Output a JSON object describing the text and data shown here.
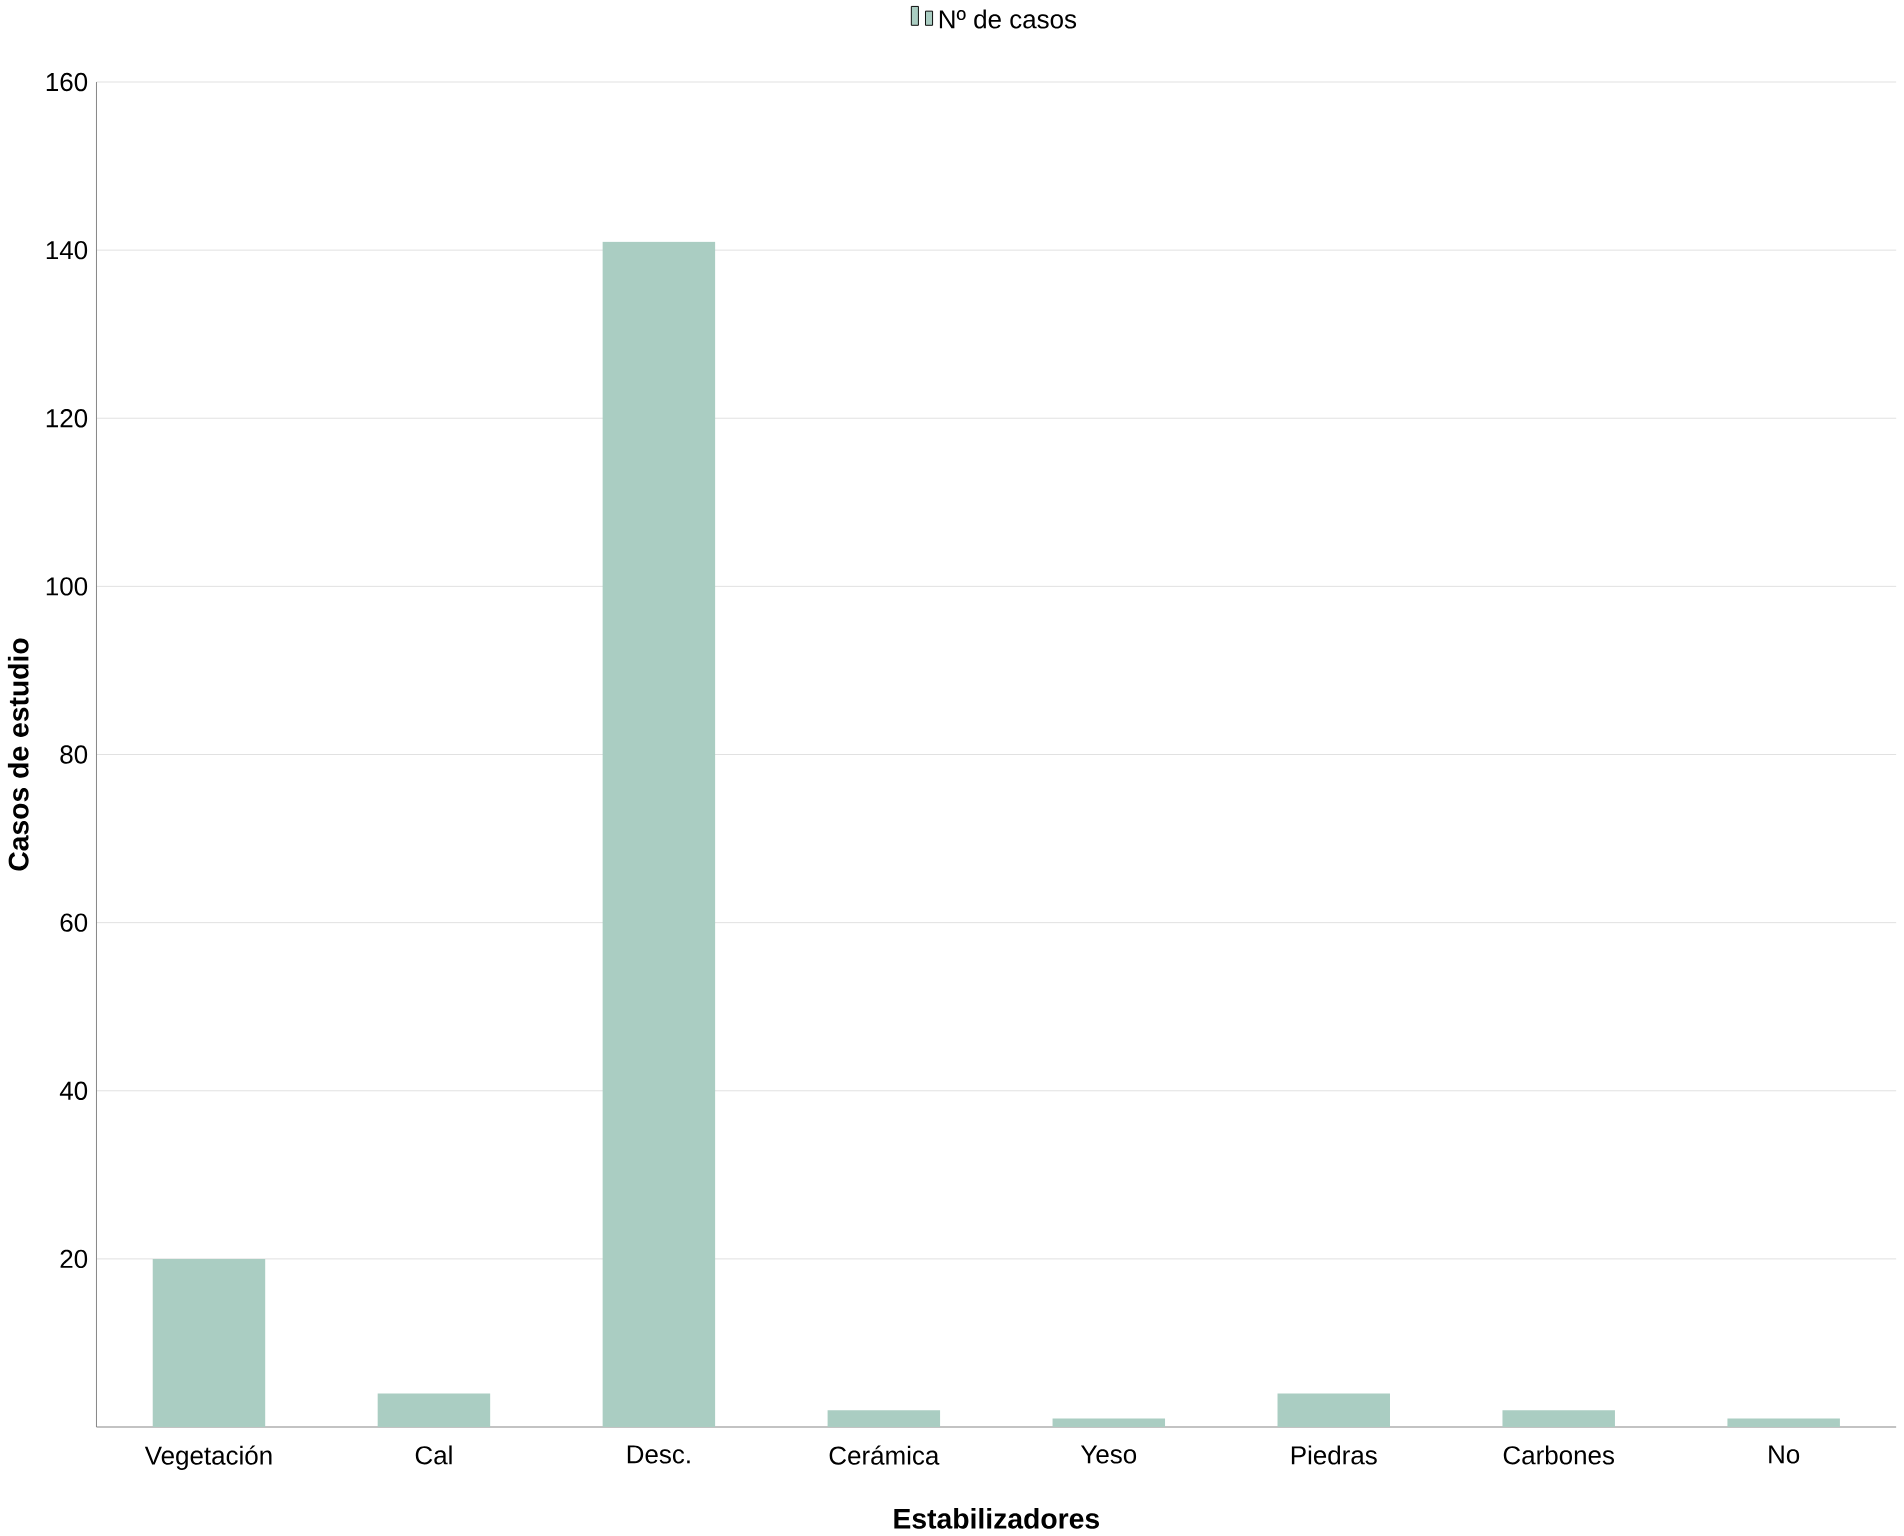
{
  "chart_data": {
    "type": "bar",
    "categories": [
      "Vegetación",
      "Cal",
      "Desc.",
      "Cerámica",
      "Yeso",
      "Piedras",
      "Carbones",
      "No"
    ],
    "series": [
      {
        "name": "Nº de casos",
        "color": "#aacdc2",
        "values": [
          20,
          4,
          141,
          2,
          1,
          4,
          2,
          1
        ]
      }
    ],
    "xlabel": "Estabilizadores",
    "ylabel": "Casos de estudio",
    "ylim": [
      0,
      160
    ],
    "yticks": [
      20,
      40,
      60,
      80,
      100,
      120,
      140,
      160
    ],
    "grid": "y",
    "legend": "top"
  }
}
